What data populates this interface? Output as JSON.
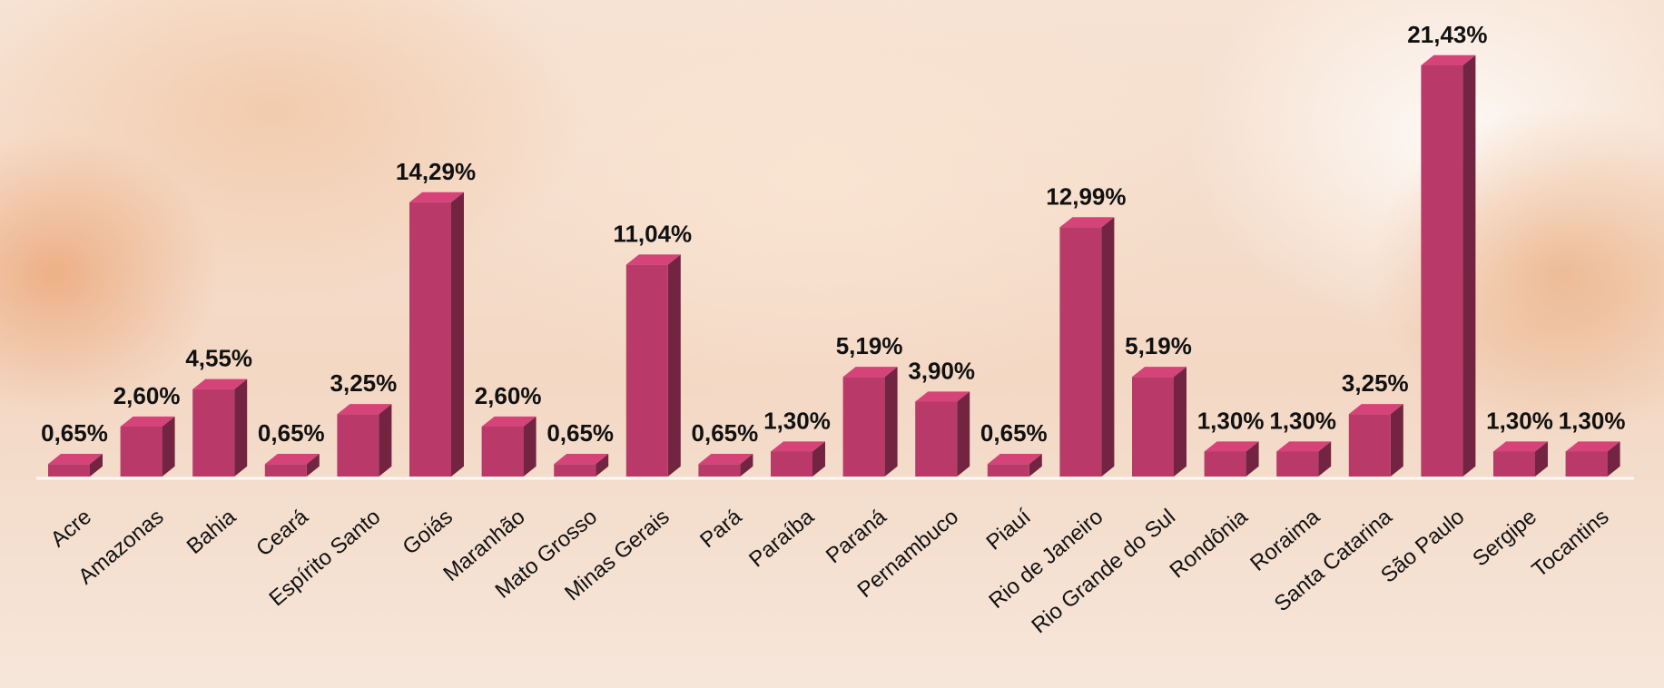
{
  "chart_data": {
    "type": "bar3d",
    "categories": [
      "Acre",
      "Amazonas",
      "Bahia",
      "Ceará",
      "Espírito Santo",
      "Goiás",
      "Maranhão",
      "Mato Grosso",
      "Minas Gerais",
      "Pará",
      "Paraíba",
      "Paraná",
      "Pernambuco",
      "Piauí",
      "Rio de Janeiro",
      "Rio Grande do Sul",
      "Rondônia",
      "Roraima",
      "Santa Catarina",
      "São Paulo",
      "Sergipe",
      "Tocantins"
    ],
    "values": [
      0.65,
      2.6,
      4.55,
      0.65,
      3.25,
      14.29,
      2.6,
      0.65,
      11.04,
      0.65,
      1.3,
      5.19,
      3.9,
      0.65,
      12.99,
      5.19,
      1.3,
      1.3,
      3.25,
      21.43,
      1.3,
      1.3
    ],
    "value_labels": [
      "0,65%",
      "2,60%",
      "4,55%",
      "0,65%",
      "3,25%",
      "14,29%",
      "2,60%",
      "0,65%",
      "11,04%",
      "0,65%",
      "1,30%",
      "5,19%",
      "3,90%",
      "0,65%",
      "12,99%",
      "5,19%",
      "1,30%",
      "1,30%",
      "3,25%",
      "21,43%",
      "1,30%",
      "1,30%"
    ],
    "color": "#b93a68"
  }
}
